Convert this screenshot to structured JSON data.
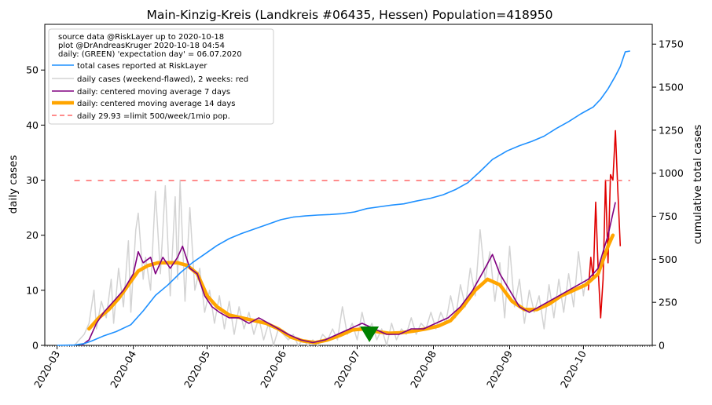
{
  "chart_data": {
    "type": "line",
    "title": "Main-Kinzig-Kreis (Landkreis #06435, Hessen) Population=418950",
    "ylabel_left": "daily cases",
    "ylabel_right": "cumulative total cases",
    "ylabel_left_color": "#800080",
    "ylabel_right_color": "#1e90ff",
    "xlim": [
      "2020-02-25",
      "2020-10-29"
    ],
    "ylim_left": [
      0,
      58.3
    ],
    "ylim_right": [
      0,
      1865
    ],
    "x_ticks": [
      "2020-03",
      "2020-04",
      "2020-05",
      "2020-06",
      "2020-07",
      "2020-08",
      "2020-09",
      "2020-10"
    ],
    "x_tick_dates": [
      "2020-03-01",
      "2020-04-01",
      "2020-05-01",
      "2020-06-01",
      "2020-07-01",
      "2020-08-01",
      "2020-09-01",
      "2020-10-01"
    ],
    "y_left_ticks": [
      0,
      10,
      20,
      30,
      40,
      50
    ],
    "y_right_ticks": [
      0,
      250,
      500,
      750,
      1000,
      1250,
      1500,
      1750
    ],
    "legend": {
      "placement": "top-left",
      "header": [
        "source data @RiskLayer up to 2020-10-18",
        "plot @DrAndreasKruger 2020-10-18 04:54",
        "daily: (GREEN) 'expectation day' = 06.07.2020"
      ],
      "entries": [
        {
          "label": "total cases reported at RiskLayer",
          "color": "#1e90ff",
          "style": "solid"
        },
        {
          "label": "daily cases (weekend-flawed), 2 weeks: red",
          "color": "#d3d3d3",
          "style": "solid"
        },
        {
          "label": "daily: centered moving average 7 days",
          "color": "#800080",
          "style": "solid"
        },
        {
          "label": "daily: centered moving average 14 days",
          "color": "#ffa500",
          "style": "thick"
        },
        {
          "label": "daily 29.93 =limit 500/week/1mio pop.",
          "color": "#ff6666",
          "style": "dashed"
        }
      ]
    },
    "limit_line": {
      "value": 29.93,
      "x_from": "2020-03-08",
      "x_to": "2020-10-20",
      "color": "#ff6666"
    },
    "expectation_marker": {
      "date": "2020-07-06",
      "value": 2,
      "color": "#008000"
    },
    "series": {
      "cumulative_total": [
        [
          "2020-03-01",
          0
        ],
        [
          "2020-03-08",
          2
        ],
        [
          "2020-03-12",
          10
        ],
        [
          "2020-03-15",
          25
        ],
        [
          "2020-03-20",
          55
        ],
        [
          "2020-03-25",
          80
        ],
        [
          "2020-03-31",
          120
        ],
        [
          "2020-04-05",
          200
        ],
        [
          "2020-04-10",
          290
        ],
        [
          "2020-04-15",
          350
        ],
        [
          "2020-04-20",
          420
        ],
        [
          "2020-04-25",
          480
        ],
        [
          "2020-04-30",
          530
        ],
        [
          "2020-05-05",
          580
        ],
        [
          "2020-05-10",
          620
        ],
        [
          "2020-05-15",
          650
        ],
        [
          "2020-05-20",
          675
        ],
        [
          "2020-05-25",
          700
        ],
        [
          "2020-05-31",
          730
        ],
        [
          "2020-06-05",
          745
        ],
        [
          "2020-06-10",
          752
        ],
        [
          "2020-06-15",
          757
        ],
        [
          "2020-06-20",
          760
        ],
        [
          "2020-06-25",
          765
        ],
        [
          "2020-06-30",
          775
        ],
        [
          "2020-07-05",
          795
        ],
        [
          "2020-07-10",
          805
        ],
        [
          "2020-07-15",
          815
        ],
        [
          "2020-07-20",
          822
        ],
        [
          "2020-07-25",
          838
        ],
        [
          "2020-07-31",
          855
        ],
        [
          "2020-08-05",
          875
        ],
        [
          "2020-08-10",
          905
        ],
        [
          "2020-08-15",
          945
        ],
        [
          "2020-08-20",
          1010
        ],
        [
          "2020-08-25",
          1080
        ],
        [
          "2020-08-31",
          1130
        ],
        [
          "2020-09-05",
          1160
        ],
        [
          "2020-09-10",
          1185
        ],
        [
          "2020-09-15",
          1215
        ],
        [
          "2020-09-20",
          1260
        ],
        [
          "2020-09-25",
          1300
        ],
        [
          "2020-09-30",
          1345
        ],
        [
          "2020-10-05",
          1385
        ],
        [
          "2020-10-08",
          1430
        ],
        [
          "2020-10-11",
          1490
        ],
        [
          "2020-10-14",
          1565
        ],
        [
          "2020-10-16",
          1620
        ],
        [
          "2020-10-18",
          1705
        ],
        [
          "2020-10-20",
          1710
        ]
      ],
      "daily_raw": [
        [
          "2020-03-08",
          0
        ],
        [
          "2020-03-10",
          1
        ],
        [
          "2020-03-12",
          2
        ],
        [
          "2020-03-14",
          4
        ],
        [
          "2020-03-16",
          10
        ],
        [
          "2020-03-17",
          3
        ],
        [
          "2020-03-19",
          8
        ],
        [
          "2020-03-21",
          5
        ],
        [
          "2020-03-23",
          12
        ],
        [
          "2020-03-24",
          4
        ],
        [
          "2020-03-26",
          14
        ],
        [
          "2020-03-28",
          7
        ],
        [
          "2020-03-30",
          19
        ],
        [
          "2020-03-31",
          6
        ],
        [
          "2020-04-02",
          21
        ],
        [
          "2020-04-03",
          24
        ],
        [
          "2020-04-05",
          12
        ],
        [
          "2020-04-06",
          16
        ],
        [
          "2020-04-08",
          10
        ],
        [
          "2020-04-10",
          28
        ],
        [
          "2020-04-12",
          13
        ],
        [
          "2020-04-14",
          29
        ],
        [
          "2020-04-16",
          9
        ],
        [
          "2020-04-18",
          27
        ],
        [
          "2020-04-19",
          12
        ],
        [
          "2020-04-20",
          30
        ],
        [
          "2020-04-22",
          8
        ],
        [
          "2020-04-24",
          25
        ],
        [
          "2020-04-26",
          10
        ],
        [
          "2020-04-28",
          14
        ],
        [
          "2020-04-30",
          6
        ],
        [
          "2020-05-02",
          10
        ],
        [
          "2020-05-04",
          4
        ],
        [
          "2020-05-06",
          9
        ],
        [
          "2020-05-08",
          3
        ],
        [
          "2020-05-10",
          8
        ],
        [
          "2020-05-12",
          2
        ],
        [
          "2020-05-14",
          7
        ],
        [
          "2020-05-16",
          3
        ],
        [
          "2020-05-18",
          6
        ],
        [
          "2020-05-20",
          2
        ],
        [
          "2020-05-22",
          5
        ],
        [
          "2020-05-24",
          1
        ],
        [
          "2020-05-26",
          4
        ],
        [
          "2020-05-28",
          0
        ],
        [
          "2020-05-30",
          3
        ],
        [
          "2020-06-01",
          2
        ],
        [
          "2020-06-03",
          1
        ],
        [
          "2020-06-05",
          2
        ],
        [
          "2020-06-07",
          0
        ],
        [
          "2020-06-09",
          1
        ],
        [
          "2020-06-11",
          0
        ],
        [
          "2020-06-13",
          1
        ],
        [
          "2020-06-15",
          0
        ],
        [
          "2020-06-17",
          2
        ],
        [
          "2020-06-19",
          1
        ],
        [
          "2020-06-21",
          3
        ],
        [
          "2020-06-23",
          1
        ],
        [
          "2020-06-25",
          7
        ],
        [
          "2020-06-27",
          2
        ],
        [
          "2020-06-29",
          4
        ],
        [
          "2020-07-01",
          1
        ],
        [
          "2020-07-03",
          6
        ],
        [
          "2020-07-05",
          2
        ],
        [
          "2020-07-07",
          4
        ],
        [
          "2020-07-09",
          1
        ],
        [
          "2020-07-11",
          3
        ],
        [
          "2020-07-13",
          0
        ],
        [
          "2020-07-15",
          4
        ],
        [
          "2020-07-17",
          1
        ],
        [
          "2020-07-19",
          3
        ],
        [
          "2020-07-21",
          2
        ],
        [
          "2020-07-23",
          5
        ],
        [
          "2020-07-25",
          2
        ],
        [
          "2020-07-27",
          4
        ],
        [
          "2020-07-29",
          3
        ],
        [
          "2020-07-31",
          6
        ],
        [
          "2020-08-02",
          3
        ],
        [
          "2020-08-04",
          6
        ],
        [
          "2020-08-06",
          4
        ],
        [
          "2020-08-08",
          9
        ],
        [
          "2020-08-10",
          5
        ],
        [
          "2020-08-12",
          11
        ],
        [
          "2020-08-14",
          7
        ],
        [
          "2020-08-16",
          14
        ],
        [
          "2020-08-18",
          9
        ],
        [
          "2020-08-20",
          21
        ],
        [
          "2020-08-22",
          12
        ],
        [
          "2020-08-24",
          17
        ],
        [
          "2020-08-26",
          8
        ],
        [
          "2020-08-28",
          15
        ],
        [
          "2020-08-30",
          5
        ],
        [
          "2020-09-01",
          18
        ],
        [
          "2020-09-03",
          7
        ],
        [
          "2020-09-05",
          12
        ],
        [
          "2020-09-07",
          4
        ],
        [
          "2020-09-09",
          10
        ],
        [
          "2020-09-11",
          6
        ],
        [
          "2020-09-13",
          9
        ],
        [
          "2020-09-15",
          3
        ],
        [
          "2020-09-17",
          11
        ],
        [
          "2020-09-19",
          5
        ],
        [
          "2020-09-21",
          12
        ],
        [
          "2020-09-23",
          6
        ],
        [
          "2020-09-25",
          13
        ],
        [
          "2020-09-27",
          7
        ],
        [
          "2020-09-29",
          17
        ],
        [
          "2020-10-01",
          9
        ],
        [
          "2020-10-02",
          12
        ]
      ],
      "daily_last_two_weeks": [
        [
          "2020-10-03",
          10
        ],
        [
          "2020-10-04",
          16
        ],
        [
          "2020-10-05",
          12
        ],
        [
          "2020-10-06",
          26
        ],
        [
          "2020-10-07",
          14
        ],
        [
          "2020-10-08",
          5
        ],
        [
          "2020-10-09",
          12
        ],
        [
          "2020-10-10",
          30
        ],
        [
          "2020-10-11",
          15
        ],
        [
          "2020-10-12",
          31
        ],
        [
          "2020-10-13",
          30
        ],
        [
          "2020-10-14",
          39
        ],
        [
          "2020-10-15",
          28
        ],
        [
          "2020-10-16",
          18
        ]
      ],
      "ma7": [
        [
          "2020-03-11",
          0
        ],
        [
          "2020-03-14",
          1
        ],
        [
          "2020-03-17",
          4
        ],
        [
          "2020-03-20",
          6
        ],
        [
          "2020-03-24",
          8
        ],
        [
          "2020-03-28",
          10
        ],
        [
          "2020-04-01",
          13
        ],
        [
          "2020-04-03",
          17
        ],
        [
          "2020-04-05",
          15
        ],
        [
          "2020-04-08",
          16
        ],
        [
          "2020-04-10",
          13
        ],
        [
          "2020-04-13",
          16
        ],
        [
          "2020-04-16",
          14
        ],
        [
          "2020-04-19",
          16
        ],
        [
          "2020-04-21",
          18
        ],
        [
          "2020-04-24",
          14
        ],
        [
          "2020-04-27",
          13
        ],
        [
          "2020-04-30",
          9
        ],
        [
          "2020-05-03",
          7
        ],
        [
          "2020-05-06",
          6
        ],
        [
          "2020-05-10",
          5
        ],
        [
          "2020-05-14",
          5
        ],
        [
          "2020-05-18",
          4
        ],
        [
          "2020-05-22",
          5
        ],
        [
          "2020-05-26",
          4
        ],
        [
          "2020-05-30",
          3
        ],
        [
          "2020-06-03",
          2
        ],
        [
          "2020-06-08",
          1
        ],
        [
          "2020-06-13",
          0.5
        ],
        [
          "2020-06-18",
          1
        ],
        [
          "2020-06-23",
          2
        ],
        [
          "2020-06-28",
          3
        ],
        [
          "2020-07-03",
          4
        ],
        [
          "2020-07-08",
          3
        ],
        [
          "2020-07-13",
          2
        ],
        [
          "2020-07-18",
          2
        ],
        [
          "2020-07-23",
          3
        ],
        [
          "2020-07-28",
          3
        ],
        [
          "2020-08-02",
          4
        ],
        [
          "2020-08-07",
          5
        ],
        [
          "2020-08-12",
          7
        ],
        [
          "2020-08-17",
          10
        ],
        [
          "2020-08-22",
          14
        ],
        [
          "2020-08-25",
          16.5
        ],
        [
          "2020-08-28",
          13
        ],
        [
          "2020-09-01",
          10
        ],
        [
          "2020-09-05",
          7
        ],
        [
          "2020-09-09",
          6
        ],
        [
          "2020-09-13",
          7
        ],
        [
          "2020-09-17",
          8
        ],
        [
          "2020-09-21",
          9
        ],
        [
          "2020-09-25",
          10
        ],
        [
          "2020-09-29",
          11
        ],
        [
          "2020-10-03",
          12
        ],
        [
          "2020-10-07",
          14
        ],
        [
          "2020-10-11",
          20
        ],
        [
          "2020-10-14",
          26
        ]
      ],
      "ma14": [
        [
          "2020-03-14",
          3
        ],
        [
          "2020-03-18",
          5
        ],
        [
          "2020-03-22",
          6.5
        ],
        [
          "2020-03-26",
          8.5
        ],
        [
          "2020-03-30",
          11
        ],
        [
          "2020-04-03",
          13.5
        ],
        [
          "2020-04-07",
          14.5
        ],
        [
          "2020-04-11",
          15
        ],
        [
          "2020-04-15",
          15
        ],
        [
          "2020-04-19",
          15
        ],
        [
          "2020-04-23",
          14.5
        ],
        [
          "2020-04-27",
          13
        ],
        [
          "2020-05-01",
          9
        ],
        [
          "2020-05-05",
          7
        ],
        [
          "2020-05-10",
          5.5
        ],
        [
          "2020-05-15",
          5
        ],
        [
          "2020-05-20",
          4.5
        ],
        [
          "2020-05-25",
          4
        ],
        [
          "2020-05-30",
          3
        ],
        [
          "2020-06-04",
          1.5
        ],
        [
          "2020-06-09",
          0.8
        ],
        [
          "2020-06-14",
          0.5
        ],
        [
          "2020-06-19",
          1
        ],
        [
          "2020-06-24",
          1.8
        ],
        [
          "2020-06-29",
          2.8
        ],
        [
          "2020-07-04",
          3
        ],
        [
          "2020-07-09",
          2.5
        ],
        [
          "2020-07-14",
          2.2
        ],
        [
          "2020-07-19",
          2.3
        ],
        [
          "2020-07-24",
          2.6
        ],
        [
          "2020-07-29",
          3
        ],
        [
          "2020-08-03",
          3.5
        ],
        [
          "2020-08-08",
          4.5
        ],
        [
          "2020-08-13",
          7
        ],
        [
          "2020-08-18",
          10
        ],
        [
          "2020-08-23",
          12
        ],
        [
          "2020-08-28",
          11
        ],
        [
          "2020-09-02",
          8
        ],
        [
          "2020-09-07",
          6.5
        ],
        [
          "2020-09-12",
          6.5
        ],
        [
          "2020-09-17",
          7.5
        ],
        [
          "2020-09-22",
          9
        ],
        [
          "2020-09-27",
          10
        ],
        [
          "2020-10-02",
          11
        ],
        [
          "2020-10-07",
          13
        ],
        [
          "2020-10-11",
          18
        ],
        [
          "2020-10-13",
          20
        ]
      ]
    }
  }
}
